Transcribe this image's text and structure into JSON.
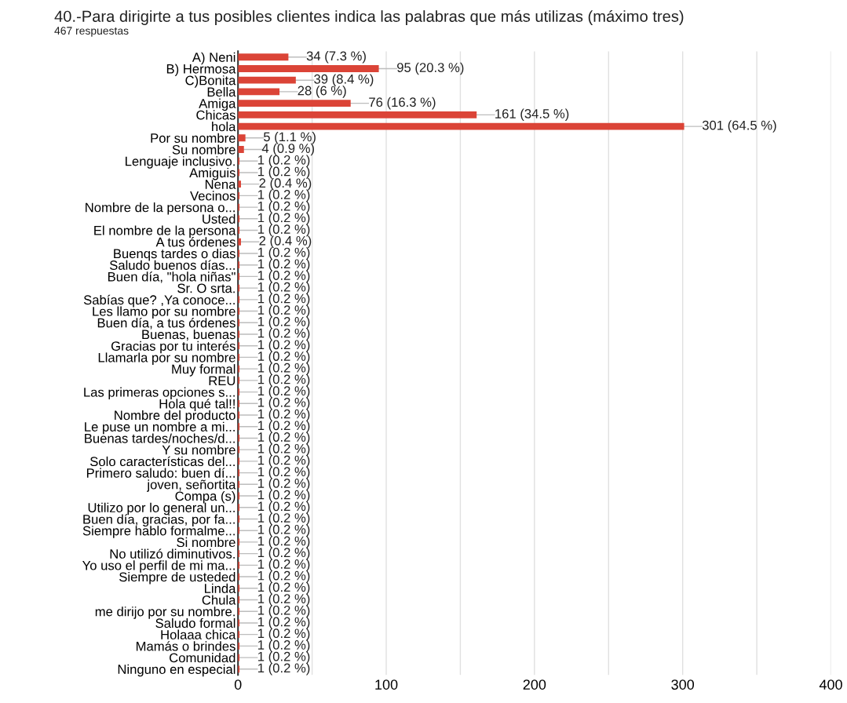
{
  "chart_data": {
    "type": "bar",
    "orientation": "horizontal",
    "title": "40.-Para dirigirte a tus posibles clientes indica las palabras que más utilizas (máximo tres)",
    "subtitle": "467 respuestas",
    "categories": [
      "A) Neni",
      "B) Hermosa",
      "C)Bonita",
      "Bella",
      "Amiga",
      "Chicas",
      "hola",
      "Por su nombre",
      "Su nombre",
      "Lenguaje inclusivo.",
      "Amiguis",
      "Nena",
      "Vecinos",
      "Nombre de la persona o...",
      "Usted",
      "El nombre de la persona",
      "A tus órdenes",
      "Buenqs tardes o dias",
      "Saludo buenos días...",
      "Buen día, \"hola niñas\"",
      "Sr. O srta.",
      "Sabías que? ,Ya conoce...",
      "Les llamo por su nombre",
      "Buen día, a tus órdenes",
      "Buenas, buenas",
      "Gracias por tu interés",
      "Llamarla por su nombre",
      "Muy formal",
      "REU",
      "Las primeras opciones s...",
      "Hola qué tal!!",
      "Nombre del producto",
      "Le puse un nombre a mi...",
      "Buenas tardes/noches/d...",
      "Y su nombre",
      "Solo características del...",
      "Primero saludo: buen dí...",
      "joven, señortita",
      "Compa (s)",
      "Utilizo por lo general un...",
      "Buen día, gracias, por fa...",
      "Siempre hablo formalme...",
      "Si nombre",
      "No utilizó diminutivos.",
      "Yo uso el perfil de mi ma...",
      "Siempre de usteded",
      "Linda",
      "Chula",
      "me dirijo por su nombre.",
      "Saludo formal",
      "Holaaa chica",
      "Mamás o brindes",
      "Comunidad",
      "Ninguno en especial"
    ],
    "values": [
      34,
      95,
      39,
      28,
      76,
      161,
      301,
      5,
      4,
      1,
      1,
      2,
      1,
      1,
      1,
      1,
      2,
      1,
      1,
      1,
      1,
      1,
      1,
      1,
      1,
      1,
      1,
      1,
      1,
      1,
      1,
      1,
      1,
      1,
      1,
      1,
      1,
      1,
      1,
      1,
      1,
      1,
      1,
      1,
      1,
      1,
      1,
      1,
      1,
      1,
      1,
      1,
      1,
      1
    ],
    "value_labels": [
      "34 (7.3 %)",
      "95 (20.3 %)",
      "39 (8.4 %)",
      "28 (6 %)",
      "76 (16.3 %)",
      "161 (34.5 %)",
      "301 (64.5 %)",
      "5 (1.1 %)",
      "4 (0.9 %)",
      "1 (0.2 %)",
      "1 (0.2 %)",
      "2 (0.4 %)",
      "1 (0.2 %)",
      "1 (0.2 %)",
      "1 (0.2 %)",
      "1 (0.2 %)",
      "2 (0.4 %)",
      "1 (0.2 %)",
      "1 (0.2 %)",
      "1 (0.2 %)",
      "1 (0.2 %)",
      "1 (0.2 %)",
      "1 (0.2 %)",
      "1 (0.2 %)",
      "1 (0.2 %)",
      "1 (0.2 %)",
      "1 (0.2 %)",
      "1 (0.2 %)",
      "1 (0.2 %)",
      "1 (0.2 %)",
      "1 (0.2 %)",
      "1 (0.2 %)",
      "1 (0.2 %)",
      "1 (0.2 %)",
      "1 (0.2 %)",
      "1 (0.2 %)",
      "1 (0.2 %)",
      "1 (0.2 %)",
      "1 (0.2 %)",
      "1 (0.2 %)",
      "1 (0.2 %)",
      "1 (0.2 %)",
      "1 (0.2 %)",
      "1 (0.2 %)",
      "1 (0.2 %)",
      "1 (0.2 %)",
      "1 (0.2 %)",
      "1 (0.2 %)",
      "1 (0.2 %)",
      "1 (0.2 %)",
      "1 (0.2 %)",
      "1 (0.2 %)",
      "1 (0.2 %)",
      "1 (0.2 %)"
    ],
    "color": "#db4437",
    "xlim": [
      0,
      400
    ],
    "xticks": [
      0,
      {
        "value": 50,
        "label": null
      },
      100,
      {
        "value": 150,
        "label": null
      },
      200,
      {
        "value": 250,
        "label": null
      },
      300,
      {
        "value": 350,
        "label": null
      },
      400
    ],
    "grid": "x"
  }
}
